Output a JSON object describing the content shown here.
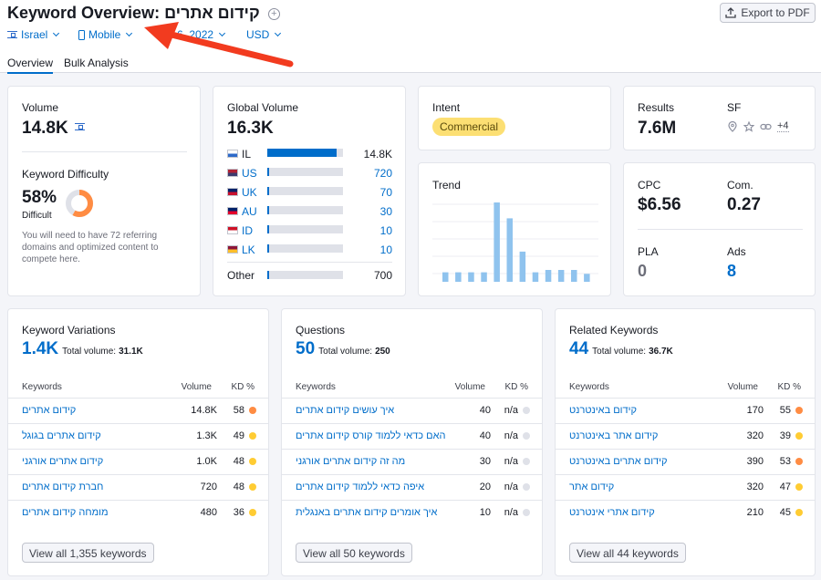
{
  "header": {
    "title_prefix": "Keyword Overview:",
    "keyword": "קידום אתרים",
    "export_label": "Export to PDF"
  },
  "filters": {
    "country": "Israel",
    "device": "Mobile",
    "date_partial": "6, 2022",
    "currency": "USD"
  },
  "tabs": [
    "Overview",
    "Bulk Analysis"
  ],
  "volume_card": {
    "label": "Volume",
    "value": "14.8K",
    "kd_label": "Keyword Difficulty",
    "kd_value": "58%",
    "kd_level": "Difficult",
    "kd_percent": 58,
    "kd_note": "You will need to have 72 referring domains and optimized content to compete here."
  },
  "global_card": {
    "label": "Global Volume",
    "value": "16.3K",
    "rows": [
      {
        "code": "IL",
        "value": "14.8K",
        "fill": 0.91,
        "link": false
      },
      {
        "code": "US",
        "value": "720",
        "fill": 0.03,
        "link": true
      },
      {
        "code": "UK",
        "value": "70",
        "fill": 0.03,
        "link": true
      },
      {
        "code": "AU",
        "value": "30",
        "fill": 0.03,
        "link": true
      },
      {
        "code": "ID",
        "value": "10",
        "fill": 0.03,
        "link": true
      },
      {
        "code": "LK",
        "value": "10",
        "fill": 0.03,
        "link": true
      }
    ],
    "other_label": "Other",
    "other_value": "700",
    "other_fill": 0.03
  },
  "intent_card": {
    "label": "Intent",
    "badge": "Commercial"
  },
  "trend_card": {
    "label": "Trend",
    "values": [
      0.12,
      0.12,
      0.12,
      0.12,
      1.0,
      0.8,
      0.38,
      0.12,
      0.15,
      0.15,
      0.15,
      0.1
    ],
    "bar_color": "#8fc3ee"
  },
  "results_card": {
    "results_label": "Results",
    "results_value": "7.6M",
    "sf_label": "SF",
    "sf_more": "+4"
  },
  "cpc_card": {
    "cpc_label": "CPC",
    "cpc_value": "$6.56",
    "com_label": "Com.",
    "com_value": "0.27",
    "pla_label": "PLA",
    "pla_value": "0",
    "ads_label": "Ads",
    "ads_value": "8"
  },
  "tables": {
    "col_keywords": "Keywords",
    "col_volume": "Volume",
    "col_kd": "KD %",
    "variations": {
      "title": "Keyword Variations",
      "count": "1.4K",
      "total_label": "Total volume:",
      "total_value": "31.1K",
      "rows": [
        {
          "kw": "קידום אתרים",
          "vol": "14.8K",
          "kd": "58",
          "color": "#ff8c43"
        },
        {
          "kw": "קידום אתרים בגוגל",
          "vol": "1.3K",
          "kd": "49",
          "color": "#ffcc33"
        },
        {
          "kw": "קידום אתרים אורגני",
          "vol": "1.0K",
          "kd": "48",
          "color": "#ffcc33"
        },
        {
          "kw": "חברת קידום אתרים",
          "vol": "720",
          "kd": "48",
          "color": "#ffcc33"
        },
        {
          "kw": "מומחה קידום אתרים",
          "vol": "480",
          "kd": "36",
          "color": "#ffcc33"
        }
      ],
      "view_all": "View all 1,355 keywords"
    },
    "questions": {
      "title": "Questions",
      "count": "50",
      "total_label": "Total volume:",
      "total_value": "250",
      "rows": [
        {
          "kw": "איך עושים קידום אתרים",
          "vol": "40",
          "kd": "n/a",
          "color": "#dfe1e8"
        },
        {
          "kw": "האם כדאי ללמוד קורס קידום אתרים",
          "vol": "40",
          "kd": "n/a",
          "color": "#dfe1e8"
        },
        {
          "kw": "מה זה קידום אתרים אורגני",
          "vol": "30",
          "kd": "n/a",
          "color": "#dfe1e8"
        },
        {
          "kw": "איפה כדאי ללמוד קידום אתרים",
          "vol": "20",
          "kd": "n/a",
          "color": "#dfe1e8"
        },
        {
          "kw": "איך אומרים קידום אתרים באנגלית",
          "vol": "10",
          "kd": "n/a",
          "color": "#dfe1e8"
        }
      ],
      "view_all": "View all 50 keywords"
    },
    "related": {
      "title": "Related Keywords",
      "count": "44",
      "total_label": "Total volume:",
      "total_value": "36.7K",
      "rows": [
        {
          "kw": "קידום באינטרנט",
          "vol": "170",
          "kd": "55",
          "color": "#ff8c43"
        },
        {
          "kw": "קידום אתר באינטרנט",
          "vol": "320",
          "kd": "39",
          "color": "#ffcc33"
        },
        {
          "kw": "קידום אתרים באינטרנט",
          "vol": "390",
          "kd": "53",
          "color": "#ff8c43"
        },
        {
          "kw": "קידום אתר",
          "vol": "320",
          "kd": "47",
          "color": "#ffcc33"
        },
        {
          "kw": "קידום אתרי אינטרנט",
          "vol": "210",
          "kd": "45",
          "color": "#ffcc33"
        }
      ],
      "view_all": "View all 44 keywords"
    }
  }
}
